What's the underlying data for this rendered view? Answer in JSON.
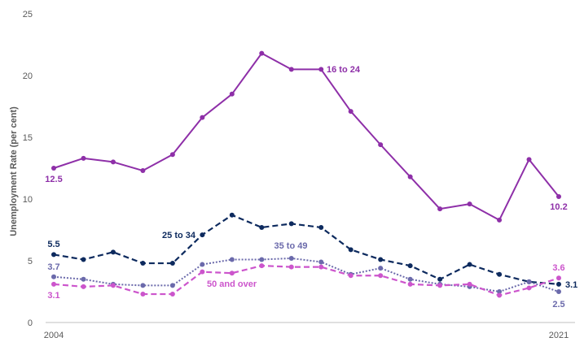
{
  "chart_data": {
    "type": "line",
    "ylabel": "Unemployment Rate (per cent)",
    "xlabel": "",
    "title": "",
    "ylim": [
      0,
      25
    ],
    "yticks": [
      0,
      5,
      10,
      15,
      20,
      25
    ],
    "x": [
      2004,
      2005,
      2006,
      2007,
      2008,
      2009,
      2010,
      2011,
      2012,
      2013,
      2014,
      2015,
      2016,
      2017,
      2018,
      2019,
      2020,
      2021
    ],
    "x_tick_labels": [
      "2004",
      "2021"
    ],
    "grid": false,
    "series": [
      {
        "name": "16 to 24",
        "color": "#8e2fa8",
        "dash": "solid",
        "values": [
          12.5,
          13.3,
          13.0,
          12.3,
          13.6,
          16.6,
          18.5,
          21.8,
          20.5,
          20.5,
          17.1,
          14.4,
          11.8,
          9.2,
          9.6,
          8.3,
          13.2,
          10.2
        ]
      },
      {
        "name": "25 to 34",
        "color": "#0d2a5e",
        "dash": "dashed",
        "values": [
          5.5,
          5.1,
          5.7,
          4.8,
          4.8,
          7.1,
          8.7,
          7.7,
          8.0,
          7.7,
          5.9,
          5.1,
          4.6,
          3.5,
          4.7,
          3.9,
          3.3,
          3.1
        ]
      },
      {
        "name": "35 to 49",
        "color": "#6b6aab",
        "dash": "dotted",
        "values": [
          3.7,
          3.5,
          3.1,
          3.0,
          3.0,
          4.7,
          5.1,
          5.1,
          5.2,
          4.9,
          3.9,
          4.4,
          3.5,
          3.1,
          2.9,
          2.5,
          3.3,
          2.5
        ]
      },
      {
        "name": "50 and over",
        "color": "#cc55cc",
        "dash": "dashed",
        "values": [
          3.1,
          2.9,
          3.0,
          2.3,
          2.3,
          4.1,
          4.0,
          4.6,
          4.5,
          4.5,
          3.8,
          3.8,
          3.1,
          3.0,
          3.1,
          2.2,
          2.8,
          3.6
        ]
      }
    ],
    "annotations": [
      {
        "text": "12.5",
        "series": "16 to 24",
        "color": "#8e2fa8"
      },
      {
        "text": "10.2",
        "series": "16 to 24",
        "color": "#8e2fa8"
      },
      {
        "text": "5.5",
        "series": "25 to 34",
        "color": "#0d2a5e"
      },
      {
        "text": "3.1",
        "series": "25 to 34",
        "color": "#0d2a5e"
      },
      {
        "text": "3.7",
        "series": "35 to 49",
        "color": "#6b6aab"
      },
      {
        "text": "2.5",
        "series": "35 to 49",
        "color": "#6b6aab"
      },
      {
        "text": "3.1",
        "series": "50 and over",
        "color": "#cc55cc"
      },
      {
        "text": "3.6",
        "series": "50 and over",
        "color": "#cc55cc"
      }
    ]
  }
}
